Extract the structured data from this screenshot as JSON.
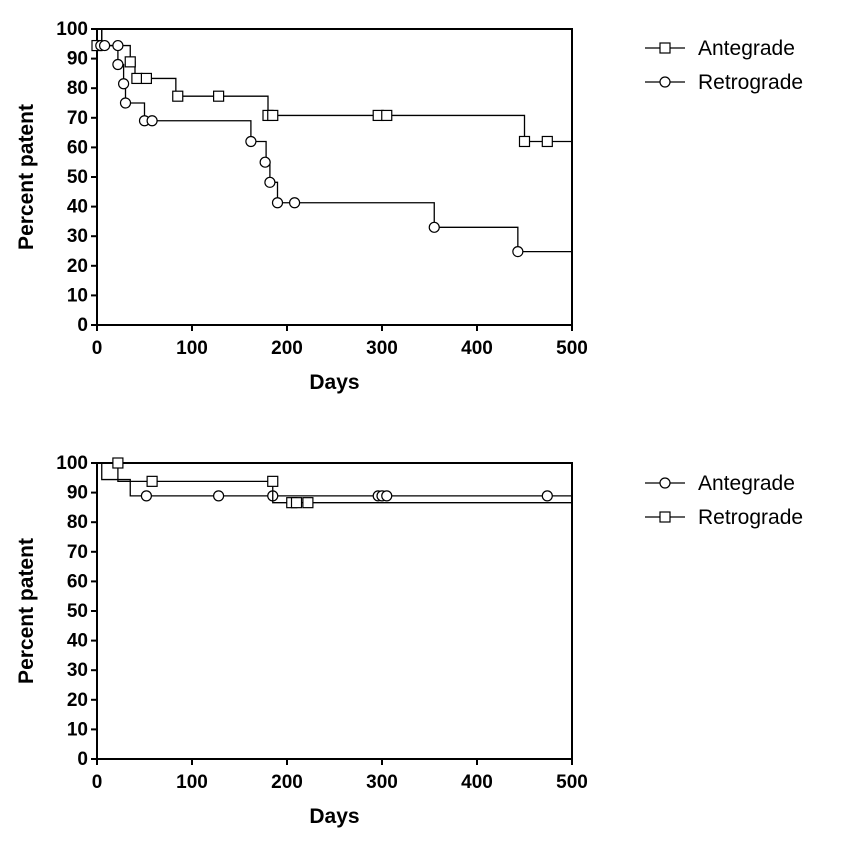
{
  "chart_data": [
    {
      "type": "line",
      "subtype": "kaplan-meier",
      "xlabel": "Days",
      "ylabel": "Percent patent",
      "xlim": [
        0,
        500
      ],
      "ylim": [
        0,
        100
      ],
      "xticks": [
        0,
        100,
        200,
        300,
        400,
        500
      ],
      "yticks": [
        0,
        10,
        20,
        30,
        40,
        50,
        60,
        70,
        80,
        90,
        100
      ],
      "legend_position": "top-right",
      "series": [
        {
          "name": "Antegrade",
          "marker": "square",
          "steps": [
            [
              0,
              100
            ],
            [
              5,
              94.4
            ],
            [
              35,
              88.9
            ],
            [
              40,
              83.3
            ],
            [
              83,
              77.3
            ],
            [
              180,
              70.8
            ],
            [
              450,
              62
            ],
            [
              500,
              62
            ]
          ],
          "censored": [
            [
              0,
              94.4
            ],
            [
              35,
              88.9
            ],
            [
              42,
              83.3
            ],
            [
              52,
              83.3
            ],
            [
              85,
              77.3
            ],
            [
              128,
              77.3
            ],
            [
              180,
              70.8
            ],
            [
              185,
              70.8
            ],
            [
              296,
              70.8
            ],
            [
              305,
              70.8
            ],
            [
              450,
              62
            ],
            [
              474,
              62
            ]
          ]
        },
        {
          "name": "Retrograde",
          "marker": "circle",
          "steps": [
            [
              0,
              100
            ],
            [
              5,
              94.4
            ],
            [
              22,
              88
            ],
            [
              28,
              81.5
            ],
            [
              30,
              75
            ],
            [
              50,
              69
            ],
            [
              162,
              62
            ],
            [
              178,
              55
            ],
            [
              182,
              48.2
            ],
            [
              190,
              41.3
            ],
            [
              355,
              33
            ],
            [
              443,
              24.8
            ],
            [
              500,
              24.8
            ]
          ],
          "censored": [
            [
              4,
              94.4
            ],
            [
              8,
              94.4
            ],
            [
              22,
              94.4
            ],
            [
              22,
              88
            ],
            [
              28,
              81.5
            ],
            [
              30,
              75
            ],
            [
              50,
              69
            ],
            [
              58,
              69
            ],
            [
              162,
              62
            ],
            [
              177,
              55
            ],
            [
              182,
              48.2
            ],
            [
              190,
              41.3
            ],
            [
              208,
              41.3
            ],
            [
              355,
              33
            ],
            [
              443,
              24.8
            ]
          ]
        }
      ]
    },
    {
      "type": "line",
      "subtype": "kaplan-meier",
      "xlabel": "Days",
      "ylabel": "Percent patent",
      "xlim": [
        0,
        500
      ],
      "ylim": [
        0,
        100
      ],
      "xticks": [
        0,
        100,
        200,
        300,
        400,
        500
      ],
      "yticks": [
        0,
        10,
        20,
        30,
        40,
        50,
        60,
        70,
        80,
        90,
        100
      ],
      "legend_position": "top-right",
      "series": [
        {
          "name": "Antegrade",
          "marker": "circle",
          "steps": [
            [
              0,
              100
            ],
            [
              5,
              94.4
            ],
            [
              35,
              88.9
            ],
            [
              500,
              88.9
            ]
          ],
          "censored": [
            [
              52,
              88.9
            ],
            [
              128,
              88.9
            ],
            [
              185,
              88.9
            ],
            [
              296,
              88.9
            ],
            [
              300,
              88.9
            ],
            [
              305,
              88.9
            ],
            [
              474,
              88.9
            ]
          ]
        },
        {
          "name": "Retrograde",
          "marker": "square",
          "steps": [
            [
              0,
              100
            ],
            [
              22,
              93.8
            ],
            [
              185,
              86.6
            ],
            [
              500,
              86.6
            ]
          ],
          "censored": [
            [
              22,
              100
            ],
            [
              58,
              93.8
            ],
            [
              185,
              93.8
            ],
            [
              205,
              86.6
            ],
            [
              210,
              86.6
            ],
            [
              222,
              86.6
            ]
          ]
        }
      ]
    }
  ]
}
